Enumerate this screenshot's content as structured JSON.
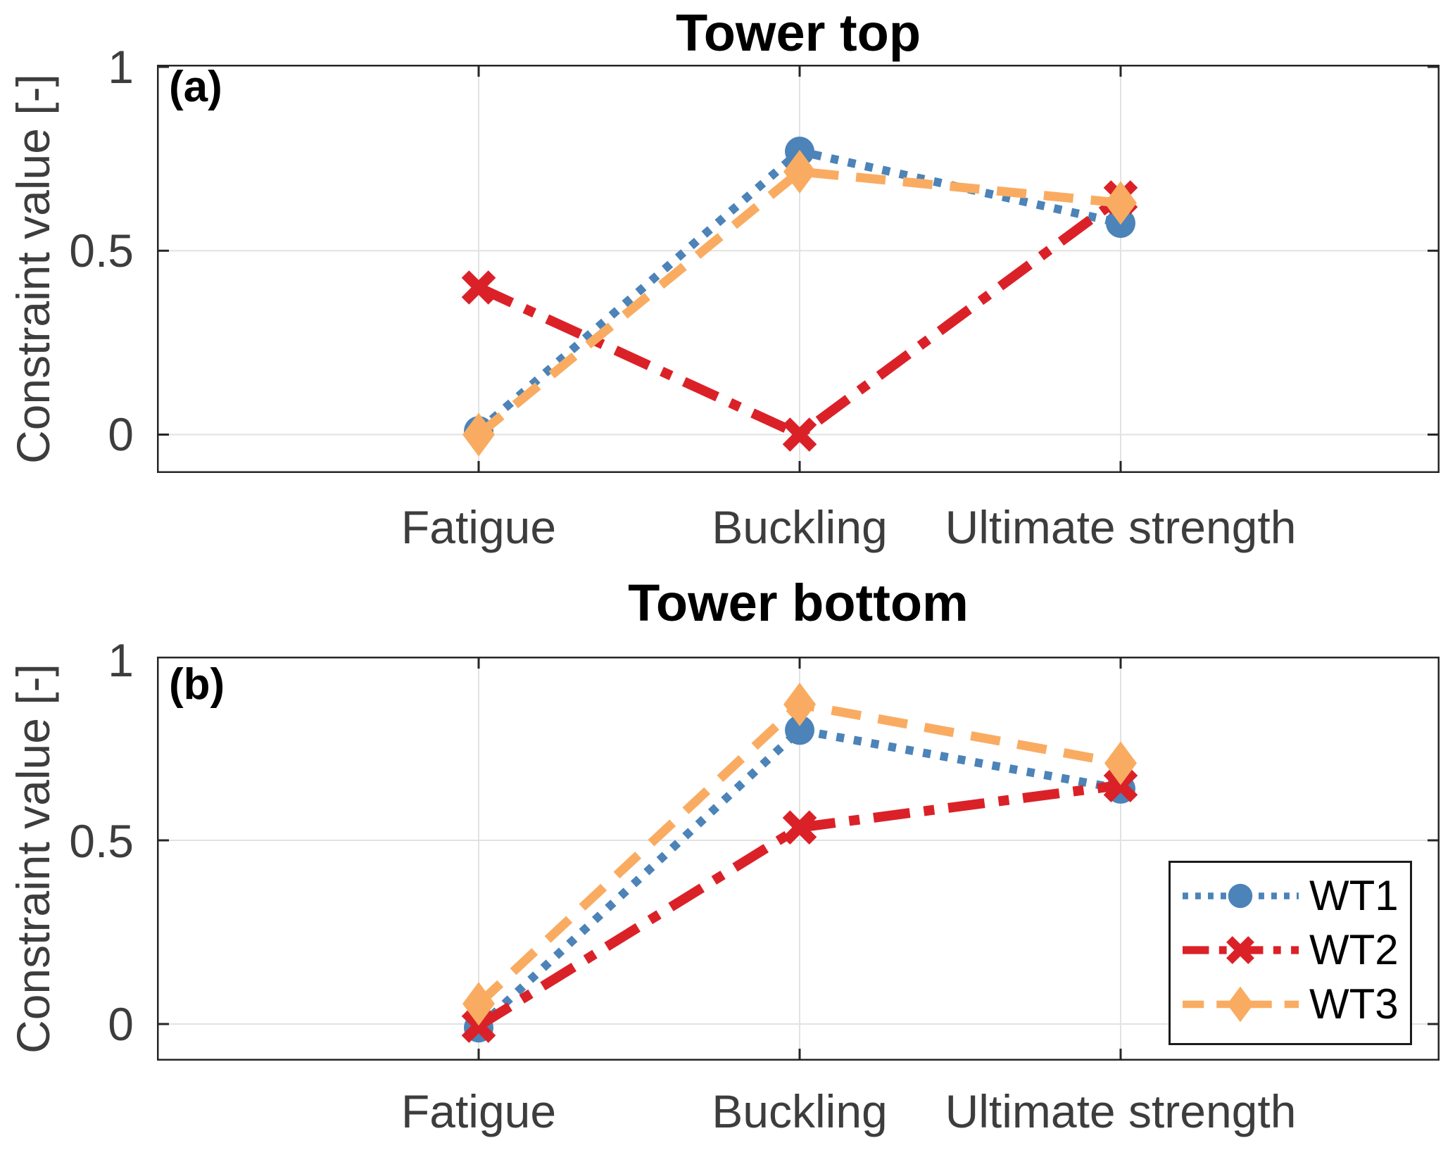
{
  "page": {
    "background": "#ffffff"
  },
  "colors": {
    "grid": "#e2e2e2",
    "axis_border": "#262626",
    "tick_text": "#3d3d3d",
    "title_text": "#000000",
    "wt1_blue": "#4C83B8",
    "wt2_red": "#DB2128",
    "wt3_orange": "#F9AC61"
  },
  "chart_data": {
    "type": "line",
    "categories": [
      "Fatigue",
      "Buckling",
      "Ultimate strength"
    ],
    "ytick_labels": [
      "1",
      "0.5",
      "0"
    ],
    "series_styles": [
      {
        "name": "WT1",
        "color": "#4C83B8",
        "marker": "circle",
        "line": "dotted"
      },
      {
        "name": "WT2",
        "color": "#DB2128",
        "marker": "x",
        "line": "dashdot"
      },
      {
        "name": "WT3",
        "color": "#F9AC61",
        "marker": "diamond",
        "line": "dashed"
      }
    ],
    "panels": [
      {
        "panel_label": "(a)",
        "title": "Tower top",
        "ylabel": "Constraint value [-]",
        "ylim": [
          -0.105,
          1.01
        ],
        "yticks": [
          0,
          0.5,
          1
        ],
        "grid": true,
        "series": [
          {
            "name": "WT1",
            "values": [
              0.01,
              0.77,
              0.575
            ]
          },
          {
            "name": "WT2",
            "values": [
              0.4,
              0.0,
              0.645
            ]
          },
          {
            "name": "WT3",
            "values": [
              0.0,
              0.715,
              0.63
            ]
          }
        ]
      },
      {
        "panel_label": "(b)",
        "title": "Tower bottom",
        "ylabel": "Constraint value [-]",
        "ylim": [
          -0.1,
          1.0
        ],
        "yticks": [
          0,
          0.5,
          1
        ],
        "grid": true,
        "series": [
          {
            "name": "WT1",
            "values": [
              -0.01,
              0.8,
              0.64
            ]
          },
          {
            "name": "WT2",
            "values": [
              -0.005,
              0.535,
              0.65
            ]
          },
          {
            "name": "WT3",
            "values": [
              0.055,
              0.87,
              0.71
            ]
          }
        ]
      }
    ],
    "legend": {
      "position": "lower-right",
      "items": [
        {
          "label": "WT1"
        },
        {
          "label": "WT2"
        },
        {
          "label": "WT3"
        }
      ]
    }
  }
}
